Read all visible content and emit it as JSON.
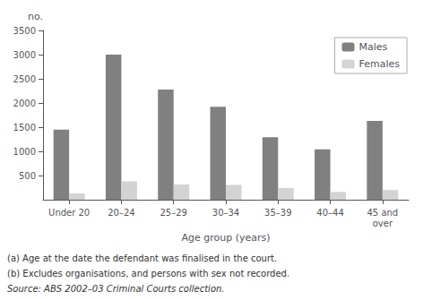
{
  "chart_data": {
    "type": "bar",
    "categories": [
      "Under 20",
      "20–24",
      "25–29",
      "30–34",
      "35–39",
      "40–44",
      "45 and\nover"
    ],
    "series": [
      {
        "name": "Males",
        "color": "#808080",
        "values": [
          1450,
          3000,
          2280,
          1920,
          1290,
          1040,
          1630
        ]
      },
      {
        "name": "Females",
        "color": "#d3d3d3",
        "values": [
          130,
          380,
          315,
          305,
          240,
          160,
          200
        ]
      }
    ],
    "xlabel": "Age group (years)",
    "ylabel": "no.",
    "ylim": [
      0,
      3500
    ],
    "yticks": [
      500,
      1000,
      1500,
      2000,
      2500,
      3000,
      3500
    ],
    "grid": false,
    "legend": "upper right",
    "annotations": [
      "(a) Age at the date the defendant was finalised in the court.",
      "(b) Excludes organisations, and persons with sex not recorded.",
      "Source: ABS 2002–03 Criminal Courts collection."
    ]
  }
}
